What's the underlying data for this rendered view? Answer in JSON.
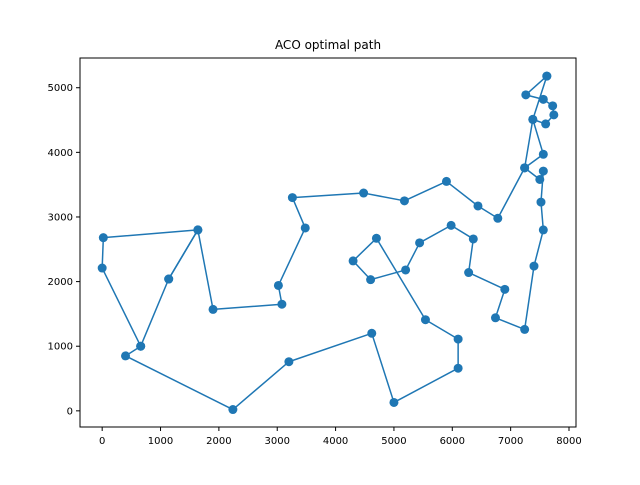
{
  "chart_data": {
    "type": "line",
    "title": "ACO optimal path",
    "xlabel": "",
    "ylabel": "",
    "xlim": [
      -380,
      8120
    ],
    "ylim": [
      -250,
      5460
    ],
    "x_ticks": [
      0,
      1000,
      2000,
      3000,
      4000,
      5000,
      6000,
      7000,
      8000
    ],
    "y_ticks": [
      0,
      1000,
      2000,
      3000,
      4000,
      5000
    ],
    "x_tick_labels": [
      "0",
      "1000",
      "2000",
      "3000",
      "4000",
      "5000",
      "6000",
      "7000",
      "8000"
    ],
    "y_tick_labels": [
      "0",
      "1000",
      "2000",
      "3000",
      "4000",
      "5000"
    ],
    "grid": false,
    "legend": "none",
    "markers": true,
    "color": "#1f77b4",
    "series": [
      {
        "x": [
          7620,
          7260,
          7560,
          7720,
          7740,
          7600,
          7380,
          7560,
          7240,
          7500,
          7560,
          7520,
          7560,
          7400,
          7240,
          6740,
          6900,
          6280,
          6360,
          5980,
          5440,
          5200,
          4600,
          4300,
          4700,
          5540,
          6100,
          6100,
          5000,
          4620,
          3200,
          2240,
          400,
          660,
          1140,
          1640,
          20,
          0,
          660
        ],
        "y": [
          5180,
          4890,
          4820,
          4720,
          4580,
          4440,
          4510,
          3970,
          3760,
          3580,
          3710,
          3230,
          2800,
          2240,
          1260,
          1440,
          1880,
          2140,
          2660,
          2870,
          2600,
          2180,
          2030,
          2320,
          2670,
          1410,
          1110,
          660,
          130,
          1200,
          760,
          20,
          850,
          1000,
          2040,
          2800,
          2680,
          2210,
          1000
        ],
        "values_note": ""
      },
      {
        "x": [
          1140,
          1640,
          1900,
          3080,
          3020,
          3480,
          3260,
          4480,
          5180,
          5900,
          6440,
          6780,
          7240,
          7380,
          7620
        ],
        "y": [
          2040,
          2800,
          1570,
          1650,
          1940,
          2830,
          3300,
          3370,
          3250,
          3550,
          3170,
          2980,
          3760,
          4510,
          5180
        ]
      }
    ]
  }
}
